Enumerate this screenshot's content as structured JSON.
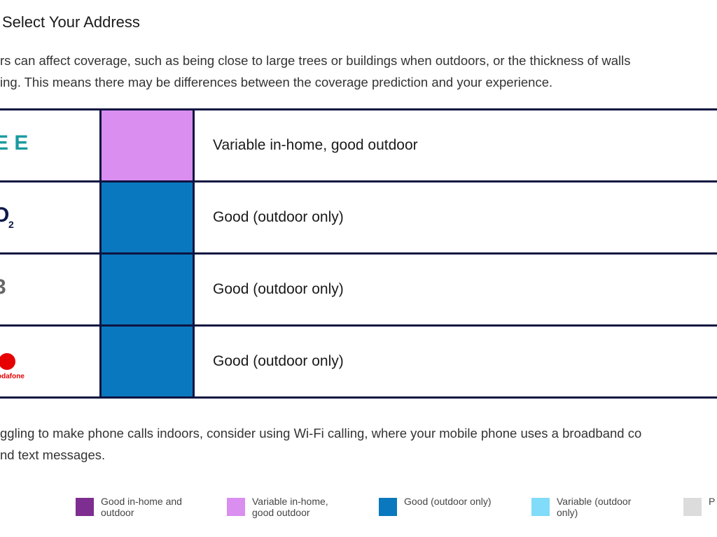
{
  "header": {
    "title": "Select Your Address"
  },
  "intro": [
    "rs can affect coverage, such as being close to large trees or buildings when outdoors, or the thickness of walls",
    "ing. This means there may be differences between the coverage prediction and your experience."
  ],
  "table": {
    "rows": [
      {
        "logo": {
          "text": "E E",
          "color": "#1a9aa0"
        },
        "status": "Variable in-home, good outdoor",
        "color": "#d98ef0"
      },
      {
        "logo": {
          "text": "O",
          "sub": "2",
          "color": "#0e1a4a"
        },
        "status": "Good (outdoor only)",
        "color": "#0a78be"
      },
      {
        "logo": {
          "text": "3",
          "color": "#666666"
        },
        "status": "Good (outdoor only)",
        "color": "#0a78be"
      },
      {
        "logo": {
          "text": "odafone",
          "color": "#e60000"
        },
        "status": "Good (outdoor only)",
        "color": "#0a78be"
      }
    ]
  },
  "footer": [
    "ggling to make phone calls indoors, consider using Wi-Fi calling, where your mobile phone uses a broadband co",
    "nd text messages."
  ],
  "legend": [
    {
      "label": "Good in-home and outdoor",
      "color": "#7e2d90"
    },
    {
      "label": "Variable in-home, good outdoor",
      "color": "#d98ef0"
    },
    {
      "label": "Good (outdoor only)",
      "color": "#0a78be"
    },
    {
      "label": "Variable (outdoor only)",
      "color": "#80dcf8"
    },
    {
      "label": "P",
      "color": "#dcdcdc"
    }
  ]
}
